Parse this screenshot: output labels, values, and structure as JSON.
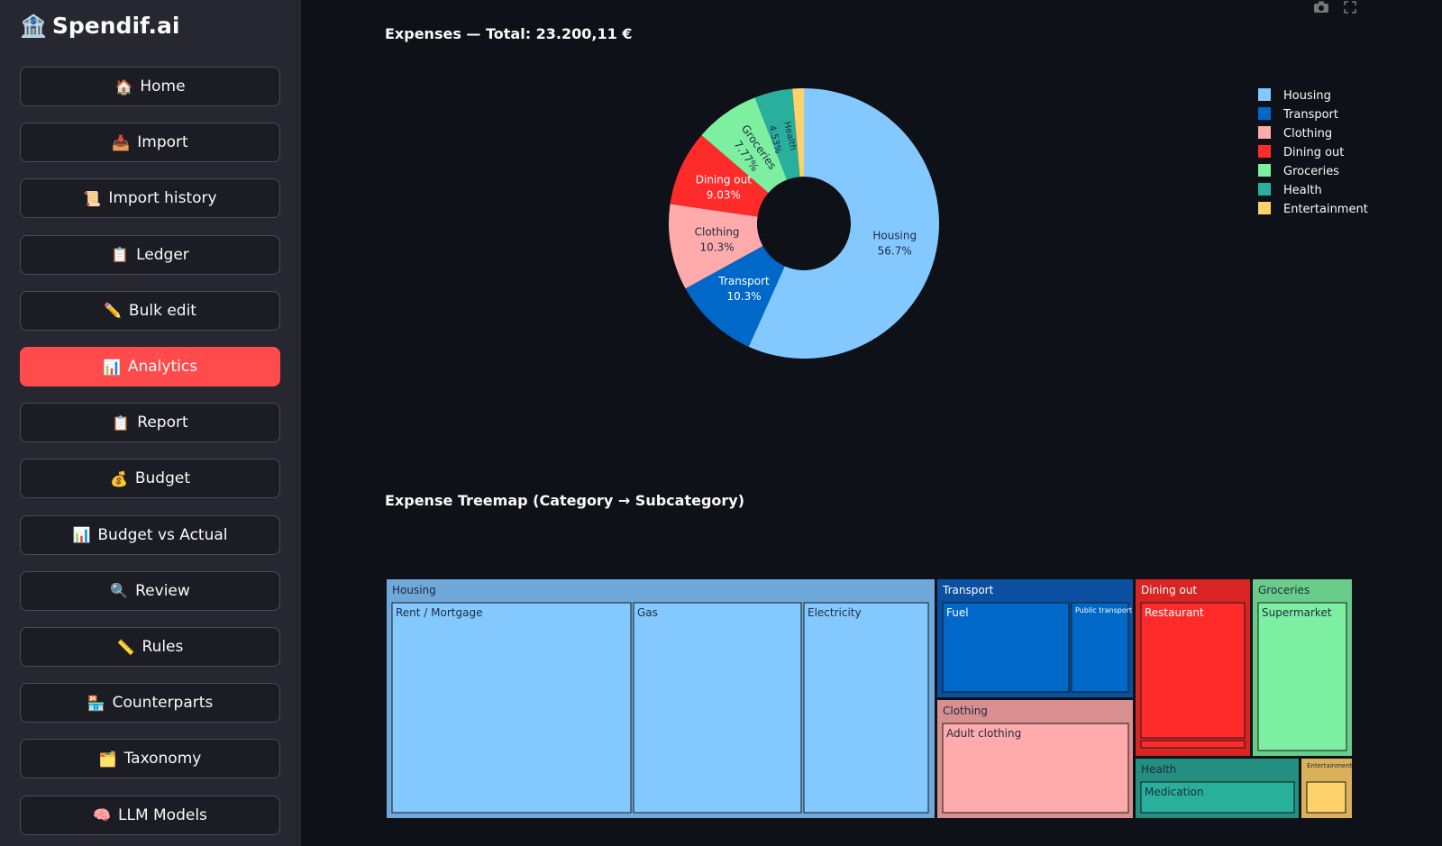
{
  "app": {
    "title": "Spendif.ai",
    "logo_icon": "bank-icon"
  },
  "sidebar": {
    "items": [
      {
        "label": "Home",
        "icon": "🏠",
        "active": false
      },
      {
        "label": "Import",
        "icon": "📥",
        "active": false
      },
      {
        "label": "Import history",
        "icon": "📜",
        "active": false
      },
      {
        "label": "Ledger",
        "icon": "📋",
        "active": false
      },
      {
        "label": "Bulk edit",
        "icon": "✏️",
        "active": false
      },
      {
        "label": "Analytics",
        "icon": "📊",
        "active": true
      },
      {
        "label": "Report",
        "icon": "📋",
        "active": false
      },
      {
        "label": "Budget",
        "icon": "💰",
        "active": false
      },
      {
        "label": "Budget vs Actual",
        "icon": "📊",
        "active": false
      },
      {
        "label": "Review",
        "icon": "🔍",
        "active": false
      },
      {
        "label": "Rules",
        "icon": "📏",
        "active": false
      },
      {
        "label": "Counterparts",
        "icon": "🏪",
        "active": false
      },
      {
        "label": "Taxonomy",
        "icon": "🗂️",
        "active": false
      },
      {
        "label": "LLM Models",
        "icon": "🧠",
        "active": false
      }
    ],
    "active_color": "#ff4b4b"
  },
  "toolbar": {
    "camera_icon": "camera-icon",
    "fullscreen_icon": "fullscreen-icon"
  },
  "charts": {
    "pie_title": "Expenses — Total: 23.200,11 €",
    "treemap_title": "Expense Treemap (Category → Subcategory)"
  },
  "chart_data": [
    {
      "type": "pie",
      "title": "Expenses — Total: 23.200,11 €",
      "hole": true,
      "legend_position": "right",
      "slices": [
        {
          "label": "Housing",
          "percent": 56.7,
          "pct_label": "56.7%",
          "color": "#83c9ff"
        },
        {
          "label": "Transport",
          "percent": 10.3,
          "pct_label": "10.3%",
          "color": "#0068c9"
        },
        {
          "label": "Clothing",
          "percent": 10.3,
          "pct_label": "10.3%",
          "color": "#ffabab"
        },
        {
          "label": "Dining out",
          "percent": 9.03,
          "pct_label": "9.03%",
          "color": "#ff2b2b"
        },
        {
          "label": "Groceries",
          "percent": 7.77,
          "pct_label": "7.77%",
          "color": "#7defa1"
        },
        {
          "label": "Health",
          "percent": 4.53,
          "pct_label": "4.53%",
          "color": "#29b09d"
        },
        {
          "label": "Entertainment",
          "percent": 1.37,
          "pct_label": "",
          "color": "#ffd16a"
        }
      ]
    },
    {
      "type": "treemap",
      "title": "Expense Treemap (Category → Subcategory)",
      "categories": [
        {
          "label": "Housing",
          "color": "#83c9ff",
          "subcategories": [
            {
              "label": "Rent / Mortgage"
            },
            {
              "label": "Gas"
            },
            {
              "label": "Electricity"
            }
          ]
        },
        {
          "label": "Transport",
          "color": "#0068c9",
          "subcategories": [
            {
              "label": "Fuel"
            },
            {
              "label": "Public transport"
            }
          ]
        },
        {
          "label": "Clothing",
          "color": "#ffabab",
          "subcategories": [
            {
              "label": "Adult clothing"
            }
          ]
        },
        {
          "label": "Dining out",
          "color": "#ff2b2b",
          "subcategories": [
            {
              "label": "Restaurant"
            }
          ]
        },
        {
          "label": "Groceries",
          "color": "#7defa1",
          "subcategories": [
            {
              "label": "Supermarket"
            }
          ]
        },
        {
          "label": "Health",
          "color": "#29b09d",
          "subcategories": [
            {
              "label": "Medication"
            }
          ]
        },
        {
          "label": "Entertainment",
          "color": "#ffd16a",
          "subcategories": []
        }
      ]
    }
  ]
}
